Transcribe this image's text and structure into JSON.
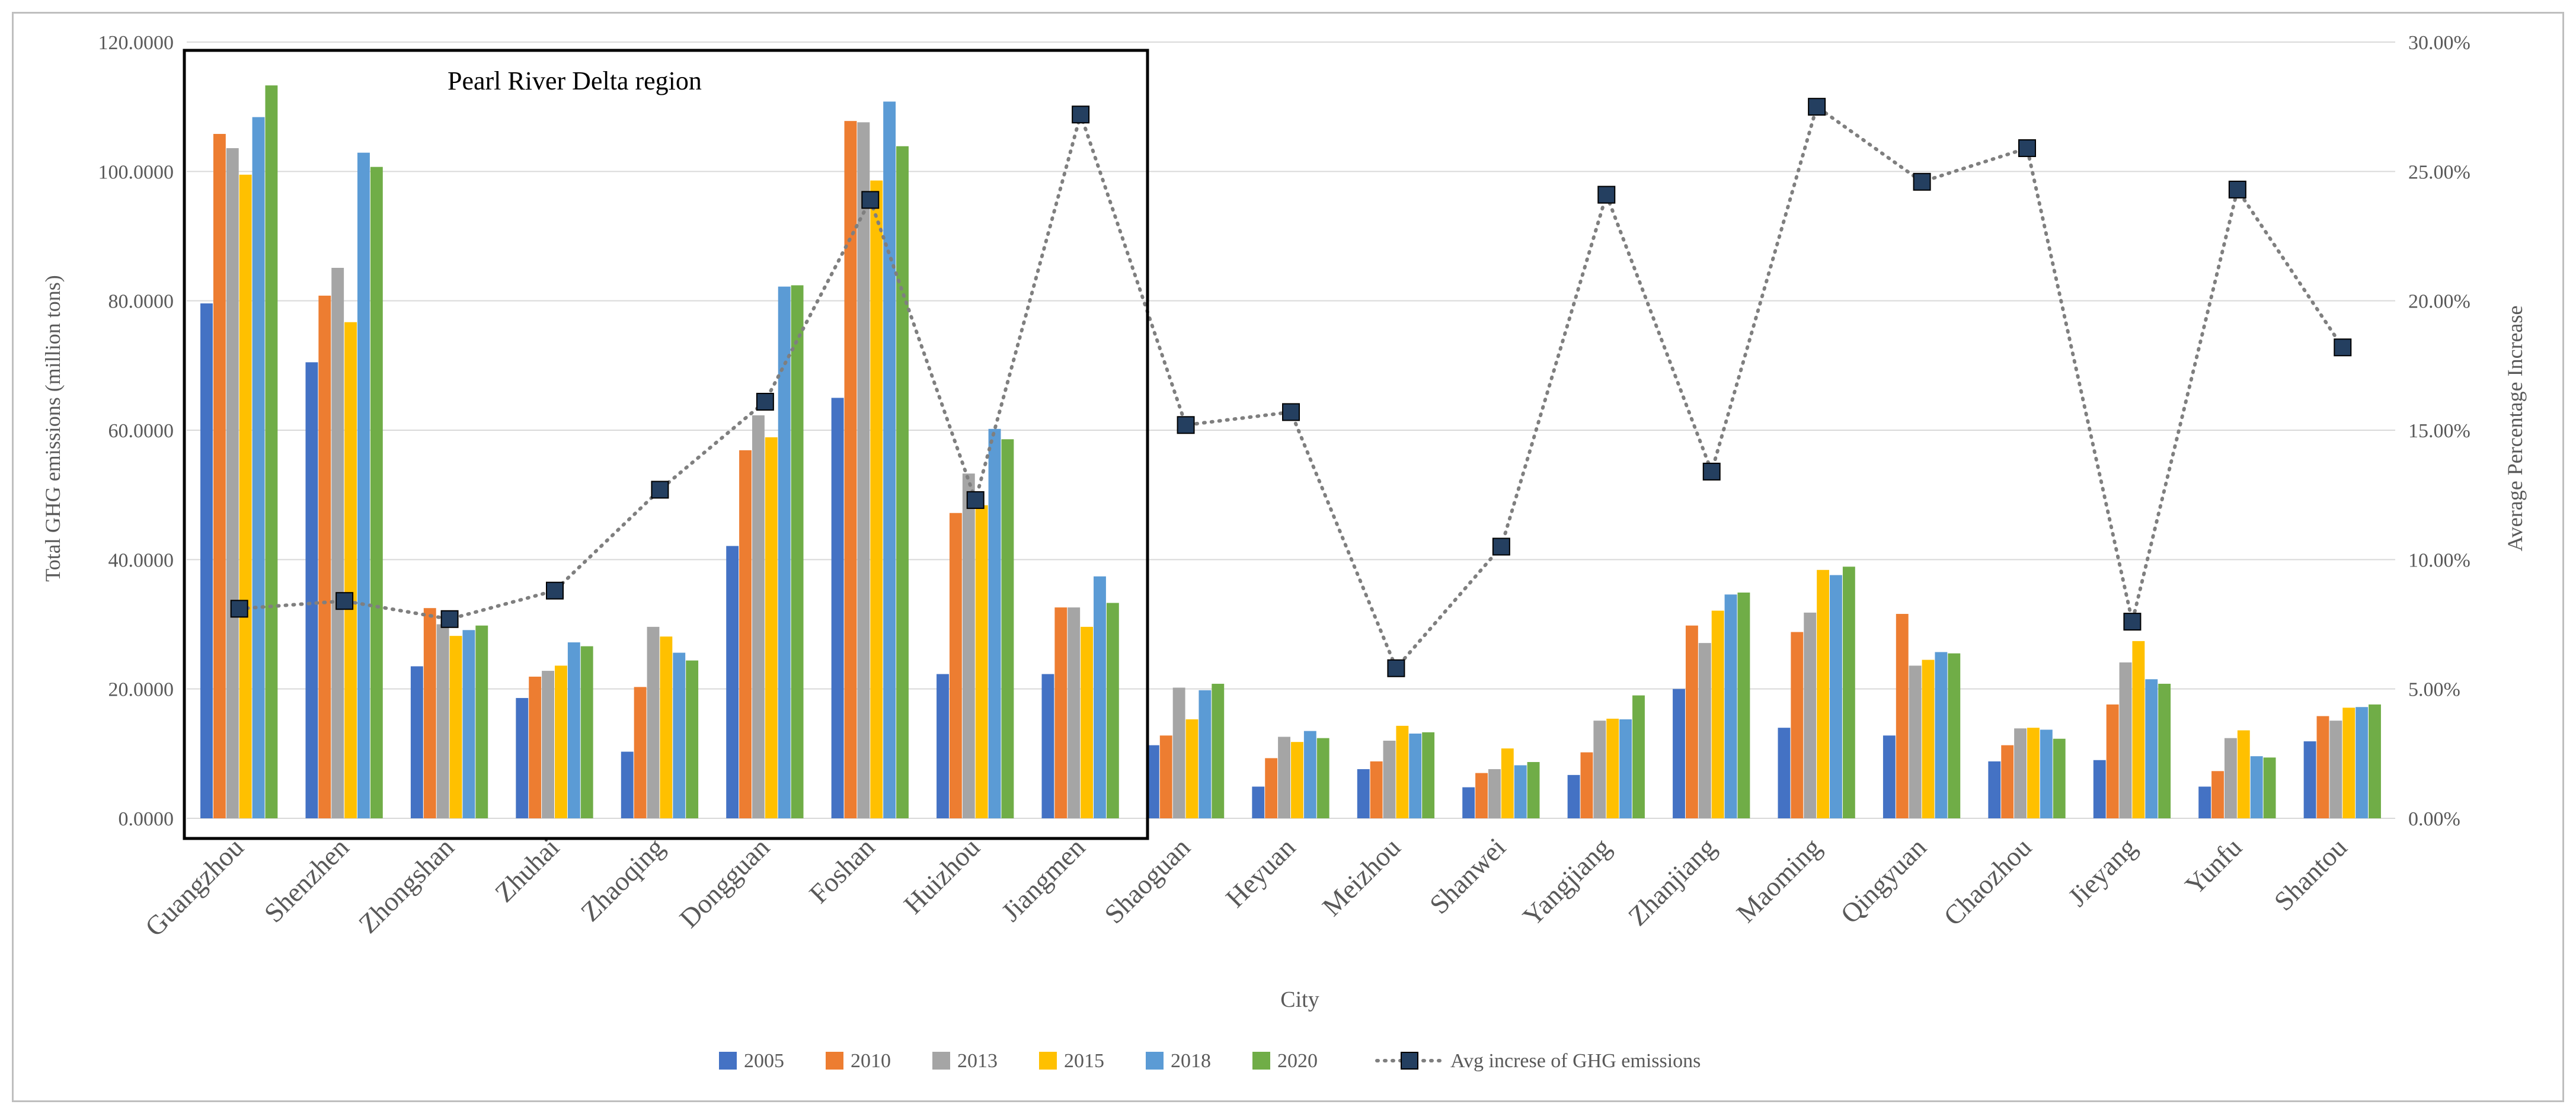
{
  "chart_data": {
    "type": "bar",
    "title": "",
    "xlabel": "City",
    "ylabel": "Total GHG emissions (million tons)",
    "y2label": "Average Percentage Increase",
    "ylim": [
      0,
      120
    ],
    "y2lim": [
      0,
      30
    ],
    "yticks": [
      "0.0000",
      "20.0000",
      "40.0000",
      "60.0000",
      "80.0000",
      "100.0000",
      "120.0000"
    ],
    "y2ticks": [
      "0.00%",
      "5.00%",
      "10.00%",
      "15.00%",
      "20.00%",
      "25.00%",
      "30.00%"
    ],
    "categories": [
      "Guangzhou",
      "Shenzhen",
      "Zhongshan",
      "Zhuhai",
      "Zhaoqing",
      "Dongguan",
      "Foshan",
      "Huizhou",
      "Jiangmen",
      "Shaoguan",
      "Heyuan",
      "Meizhou",
      "Shanwei",
      "Yangjiang",
      "Zhanjiang",
      "Maoming",
      "Qingyuan",
      "Chaozhou",
      "Jieyang",
      "Yunfu",
      "Shantou"
    ],
    "series": [
      {
        "name": "2005",
        "color": "#4472C4",
        "values": [
          79.6,
          70.5,
          23.5,
          18.6,
          10.3,
          42.1,
          65.0,
          22.3,
          22.3,
          11.3,
          4.9,
          7.6,
          4.8,
          6.7,
          20.0,
          14.0,
          12.8,
          8.8,
          9.0,
          4.9,
          11.9
        ]
      },
      {
        "name": "2010",
        "color": "#ED7D31",
        "values": [
          105.8,
          80.8,
          32.5,
          21.9,
          20.3,
          56.9,
          107.8,
          47.2,
          32.6,
          12.8,
          9.3,
          8.8,
          7.0,
          10.2,
          29.8,
          28.8,
          31.6,
          11.3,
          17.6,
          7.3,
          15.8
        ]
      },
      {
        "name": "2013",
        "color": "#A5A5A5",
        "values": [
          103.6,
          85.1,
          30.0,
          22.8,
          29.6,
          62.3,
          107.6,
          53.3,
          32.6,
          20.2,
          12.6,
          12.0,
          7.6,
          15.1,
          27.1,
          31.8,
          23.6,
          13.9,
          24.1,
          12.4,
          15.1
        ]
      },
      {
        "name": "2015",
        "color": "#FFC000",
        "values": [
          99.5,
          76.7,
          28.2,
          23.6,
          28.1,
          58.9,
          98.6,
          48.4,
          29.6,
          15.3,
          11.8,
          14.3,
          10.8,
          15.4,
          32.1,
          38.4,
          24.5,
          14.0,
          27.4,
          13.6,
          17.1
        ]
      },
      {
        "name": "2018",
        "color": "#5B9BD5",
        "values": [
          108.4,
          102.9,
          29.1,
          27.2,
          25.6,
          82.2,
          110.8,
          60.2,
          37.4,
          19.8,
          13.5,
          13.1,
          8.2,
          15.3,
          34.6,
          37.6,
          25.7,
          13.7,
          21.5,
          9.6,
          17.2
        ]
      },
      {
        "name": "2020",
        "color": "#70AD47",
        "values": [
          113.3,
          100.7,
          29.8,
          26.6,
          24.4,
          82.4,
          103.9,
          58.6,
          33.3,
          20.8,
          12.4,
          13.3,
          8.7,
          19.0,
          34.9,
          38.9,
          25.5,
          12.3,
          20.8,
          9.4,
          17.6
        ]
      }
    ],
    "line_series": {
      "name": "Avg increse of GHG emissions",
      "axis": "secondary",
      "color": "#7f7f7f",
      "marker_fill": "#243F60",
      "values": [
        8.1,
        8.4,
        7.7,
        8.8,
        12.7,
        16.1,
        23.9,
        12.3,
        27.2,
        15.2,
        15.7,
        5.8,
        10.5,
        24.1,
        13.4,
        27.5,
        24.6,
        25.9,
        7.6,
        24.3,
        18.2
      ]
    },
    "annotation": {
      "text": "Pearl River Delta region",
      "covers_categories": [
        "Guangzhou",
        "Jiangmen"
      ]
    },
    "legend_position": "bottom",
    "gridlines": true
  }
}
